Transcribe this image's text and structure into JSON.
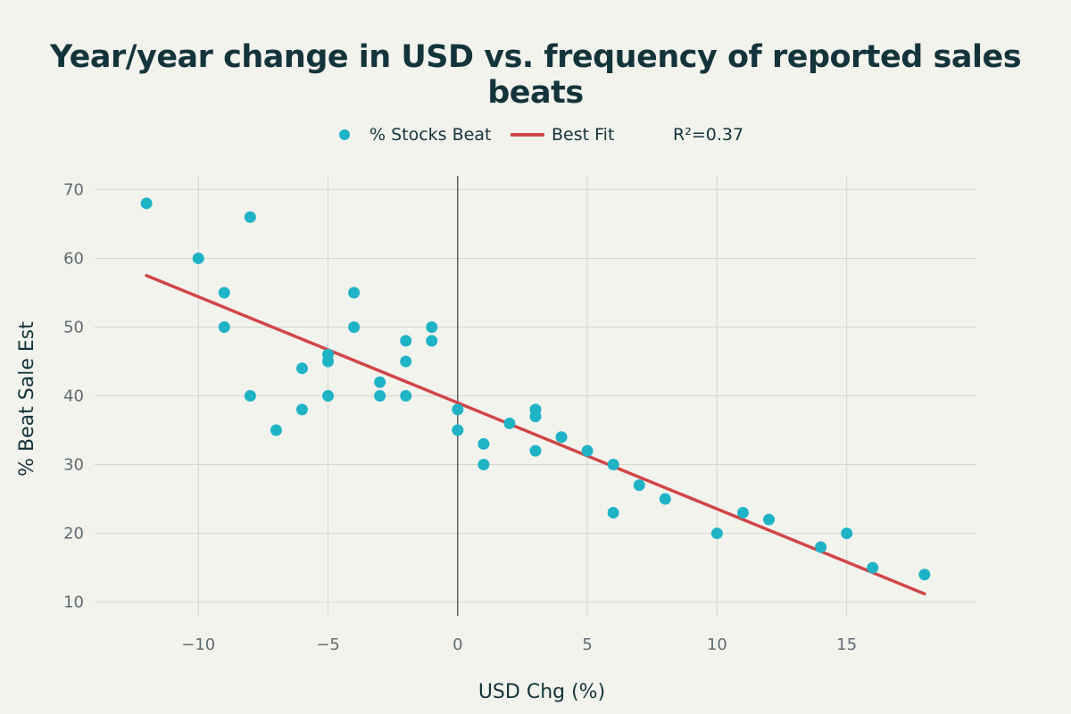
{
  "chart_data": {
    "type": "scatter",
    "title": "Year/year change in USD vs. frequency of reported sales beats",
    "xlabel": "USD Chg (%)",
    "ylabel": "% Beat Sale Est",
    "xlim": [
      -14,
      20
    ],
    "ylim": [
      8,
      72
    ],
    "xticks": [
      -10,
      -5,
      0,
      5,
      10,
      15
    ],
    "xtick_labels": [
      "−10",
      "−5",
      "0",
      "5",
      "10",
      "15"
    ],
    "yticks": [
      10,
      20,
      30,
      40,
      50,
      60,
      70
    ],
    "ytick_labels": [
      "10",
      "20",
      "30",
      "40",
      "50",
      "60",
      "70"
    ],
    "grid": true,
    "legend_position": "top-center",
    "annotation": "R²=0.37",
    "series": [
      {
        "name": "% Stocks Beat",
        "type": "scatter",
        "color": "#1fb3c6",
        "points": [
          [
            -12,
            68
          ],
          [
            -10,
            60
          ],
          [
            -9,
            55
          ],
          [
            -9,
            50
          ],
          [
            -8,
            66
          ],
          [
            -8,
            40
          ],
          [
            -7,
            35
          ],
          [
            -6,
            44
          ],
          [
            -6,
            38
          ],
          [
            -5,
            46
          ],
          [
            -5,
            45
          ],
          [
            -5,
            40
          ],
          [
            -4,
            55
          ],
          [
            -4,
            50
          ],
          [
            -3,
            42
          ],
          [
            -3,
            40
          ],
          [
            -2,
            48
          ],
          [
            -2,
            45
          ],
          [
            -2,
            40
          ],
          [
            -1,
            50
          ],
          [
            -1,
            48
          ],
          [
            0,
            38
          ],
          [
            0,
            35
          ],
          [
            1,
            33
          ],
          [
            1,
            30
          ],
          [
            2,
            36
          ],
          [
            3,
            38
          ],
          [
            3,
            37
          ],
          [
            3,
            32
          ],
          [
            4,
            34
          ],
          [
            5,
            32
          ],
          [
            6,
            30
          ],
          [
            6,
            23
          ],
          [
            7,
            27
          ],
          [
            8,
            25
          ],
          [
            10,
            20
          ],
          [
            11,
            23
          ],
          [
            12,
            22
          ],
          [
            14,
            18
          ],
          [
            15,
            20
          ],
          [
            16,
            15
          ],
          [
            18,
            14
          ]
        ]
      },
      {
        "name": "Best Fit",
        "type": "line",
        "color": "#d04646",
        "points": [
          [
            -12,
            57.5
          ],
          [
            18,
            11.2
          ]
        ]
      }
    ],
    "zero_line_x": 0
  }
}
